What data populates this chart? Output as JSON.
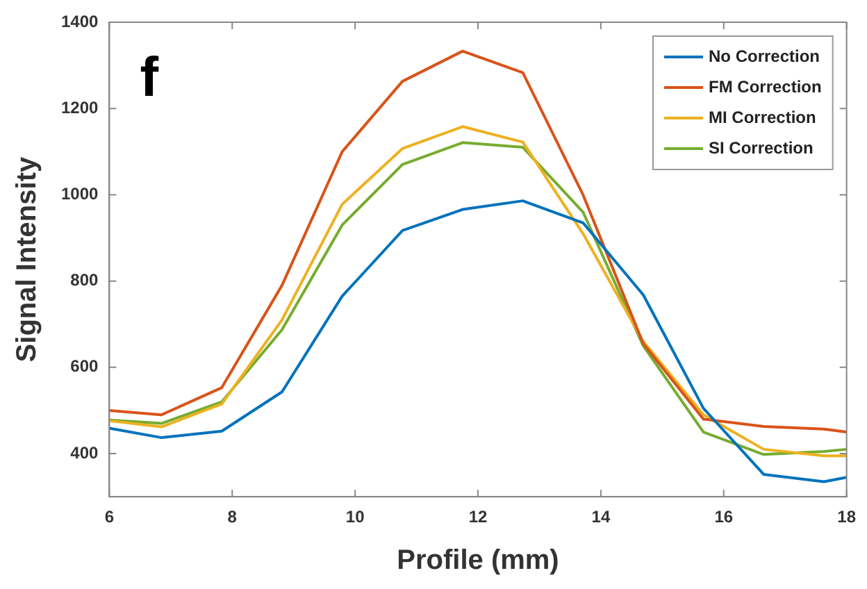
{
  "chart_data": {
    "type": "line",
    "xlabel": "Profile (mm)",
    "ylabel": "Signal Intensity",
    "annotations": [
      "f"
    ],
    "x": [
      6,
      6.85,
      7.83,
      8.81,
      9.79,
      10.77,
      11.75,
      12.73,
      13.71,
      14.69,
      15.67,
      16.65,
      17.63,
      18
    ],
    "xlim": [
      6,
      18
    ],
    "xticks": [
      6,
      8,
      10,
      12,
      14,
      16,
      18
    ],
    "ylim": [
      300,
      1400
    ],
    "yticks": [
      400,
      600,
      800,
      1000,
      1200,
      1400
    ],
    "grid": false,
    "legend": "top right",
    "marker": "none",
    "line_style": "solid",
    "series": [
      {
        "name": "No Correction",
        "color": "#0072bd",
        "values": [
          459,
          437,
          452,
          543,
          765,
          917,
          966,
          986,
          935,
          768,
          505,
          352,
          335,
          345
        ]
      },
      {
        "name": "FM Correction",
        "color": "#d95319",
        "values": [
          500,
          490,
          553,
          790,
          1100,
          1263,
          1333,
          1283,
          1000,
          655,
          480,
          463,
          457,
          450
        ]
      },
      {
        "name": "MI Correction",
        "color": "#edb120",
        "values": [
          476,
          462,
          515,
          710,
          978,
          1107,
          1158,
          1122,
          910,
          660,
          490,
          410,
          395,
          395
        ]
      },
      {
        "name": "SI Correction",
        "color": "#77ac30",
        "values": [
          478,
          470,
          520,
          687,
          930,
          1070,
          1121,
          1110,
          960,
          650,
          450,
          398,
          405,
          410
        ]
      }
    ]
  }
}
